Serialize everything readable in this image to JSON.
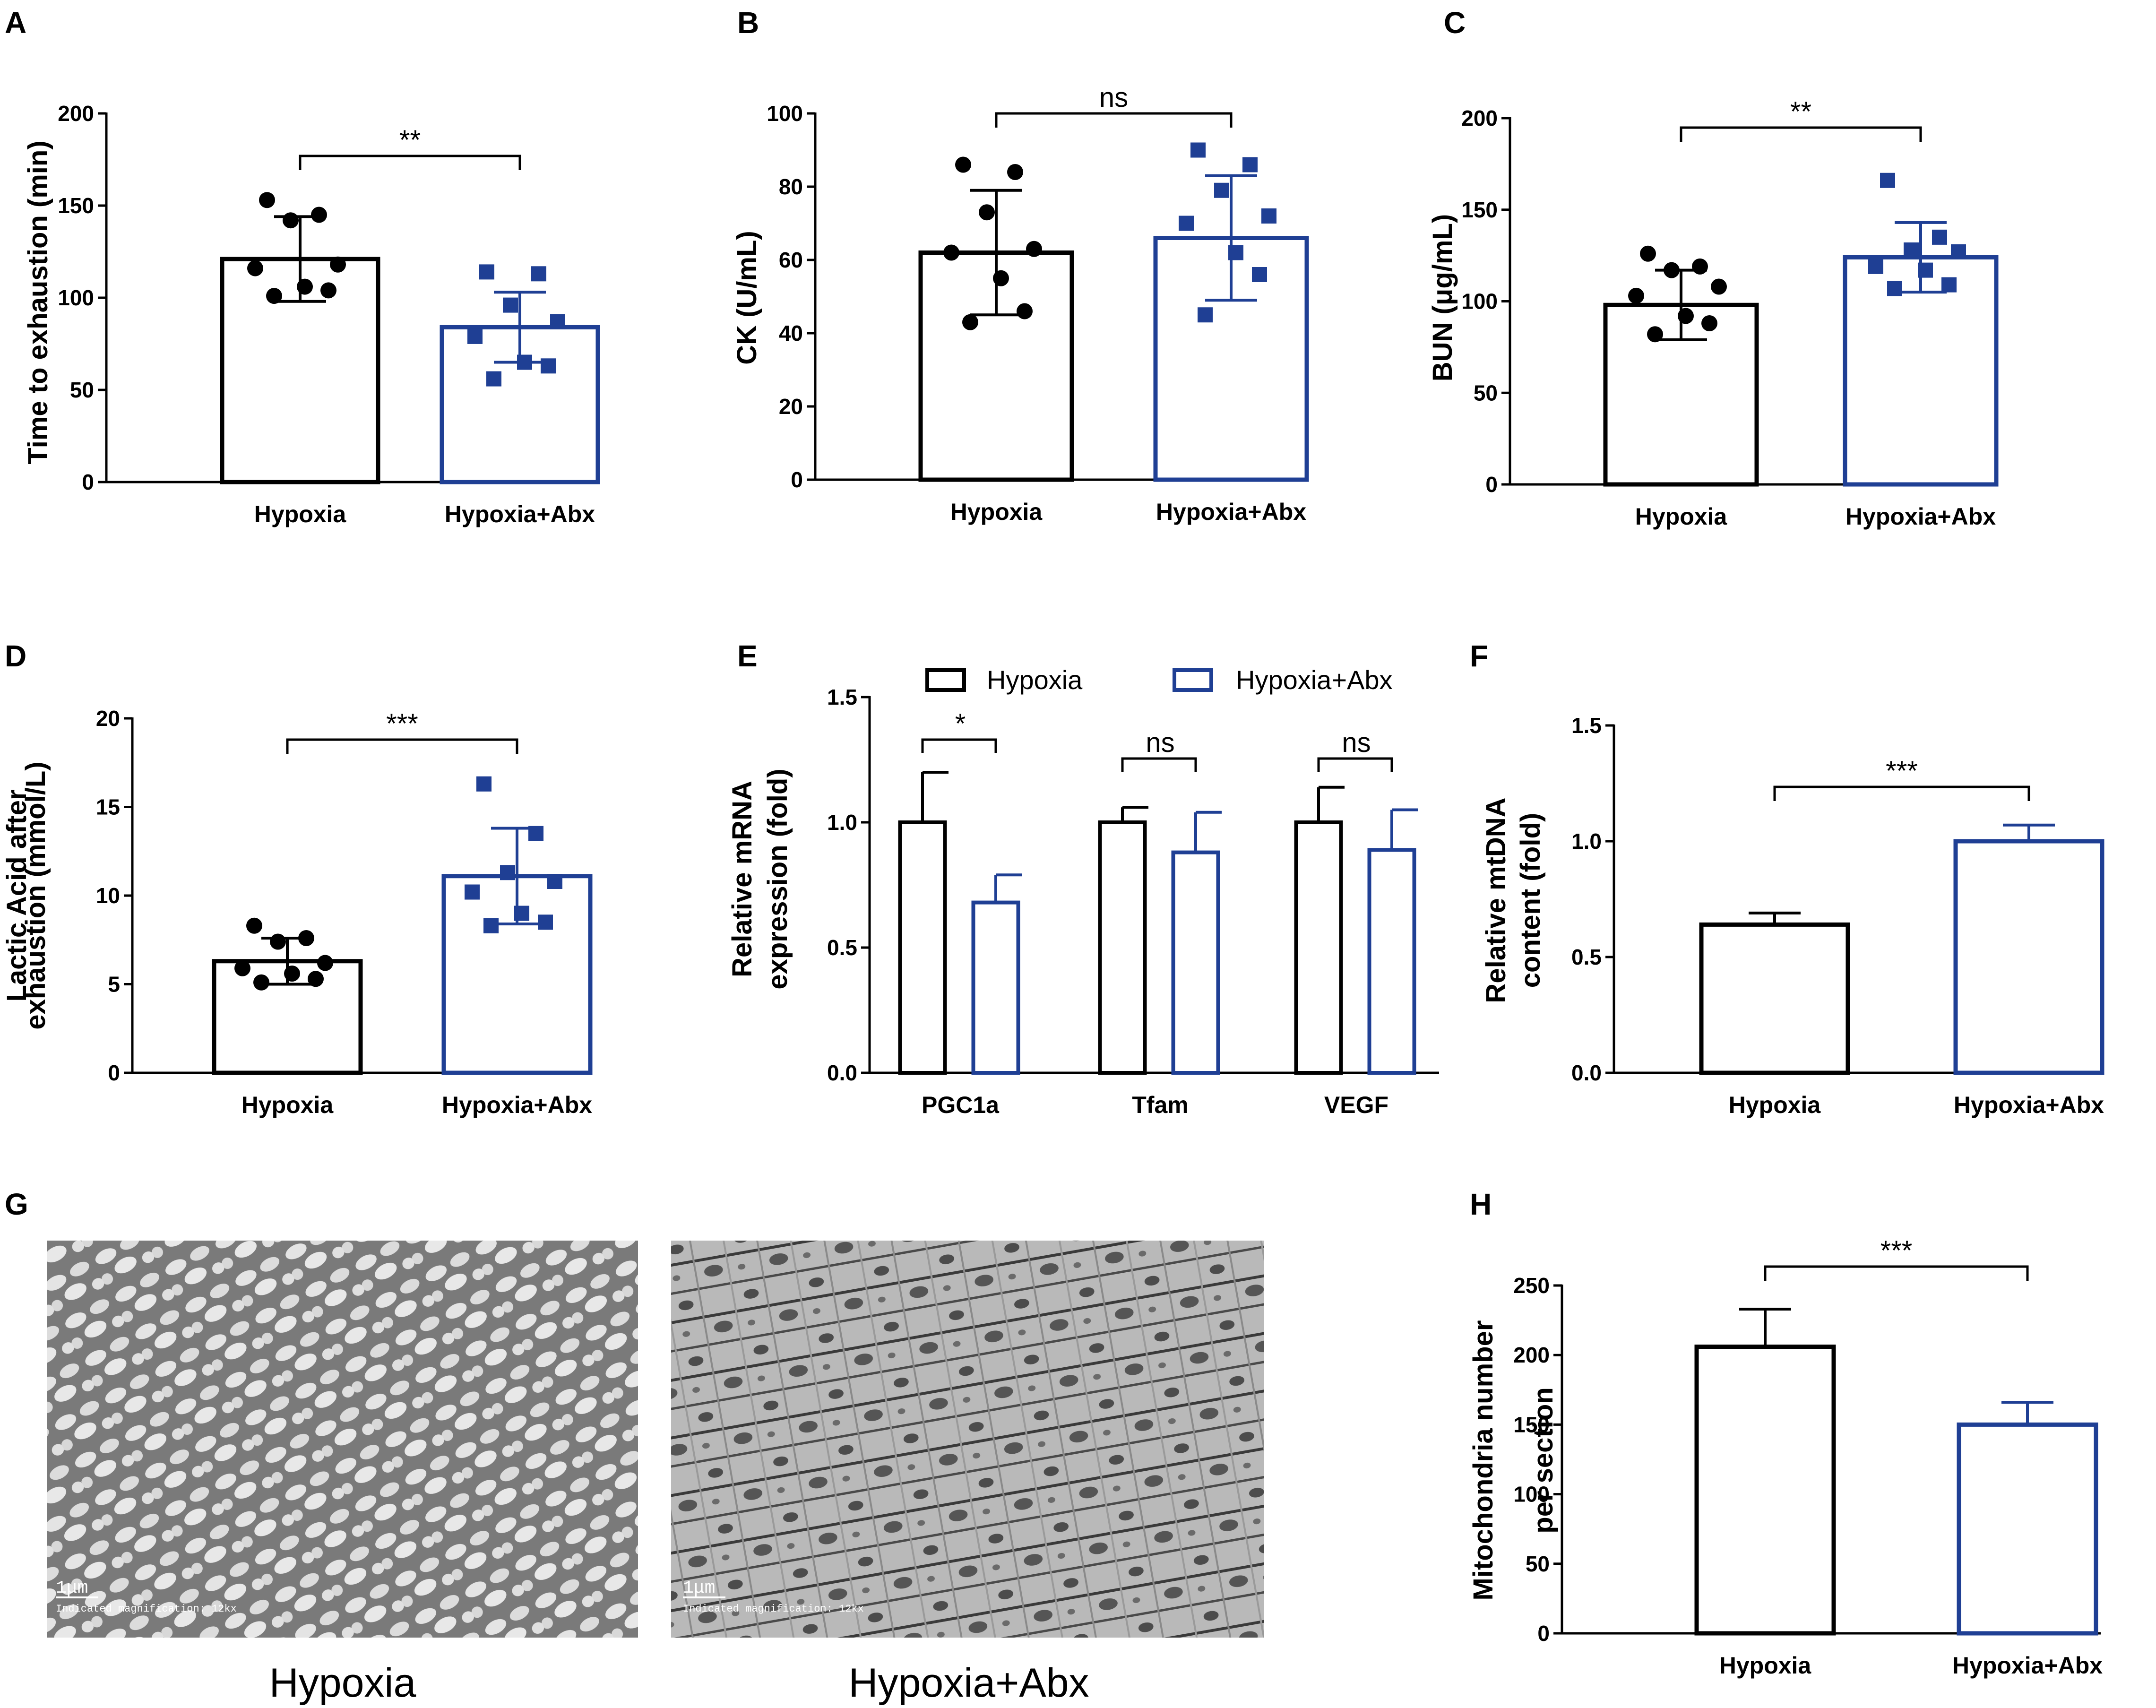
{
  "colors": {
    "hypoxia": "#000000",
    "abx": "#1f3f94",
    "axis": "#000000"
  },
  "chart_data": [
    {
      "panel": "A",
      "type": "bar",
      "ylabel": "Time to exhaustion (min)",
      "ylim": [
        0,
        200
      ],
      "yticks": [
        0,
        50,
        100,
        150,
        200
      ],
      "categories": [
        "Hypoxia",
        "Hypoxia+Abx"
      ],
      "values": [
        121,
        84
      ],
      "errors": [
        23,
        19
      ],
      "points": [
        [
          153,
          145,
          142,
          118,
          116,
          106,
          104,
          101
        ],
        [
          114,
          113,
          96,
          87,
          79,
          65,
          63,
          56
        ]
      ],
      "significance": "**"
    },
    {
      "panel": "B",
      "type": "bar",
      "ylabel": "CK (U/mL)",
      "ylim": [
        0,
        100
      ],
      "yticks": [
        0,
        20,
        40,
        60,
        80,
        100
      ],
      "categories": [
        "Hypoxia",
        "Hypoxia+Abx"
      ],
      "values": [
        62,
        66
      ],
      "errors": [
        17,
        17
      ],
      "points": [
        [
          86,
          84,
          73,
          63,
          62,
          55,
          46,
          43
        ],
        [
          90,
          86,
          79,
          72,
          70,
          62,
          56,
          45
        ]
      ],
      "significance": "ns"
    },
    {
      "panel": "C",
      "type": "bar",
      "ylabel": "BUN (μg/mL)",
      "ylim": [
        0,
        200
      ],
      "yticks": [
        0,
        50,
        100,
        150,
        200
      ],
      "categories": [
        "Hypoxia",
        "Hypoxia+Abx"
      ],
      "values": [
        98,
        124
      ],
      "errors": [
        19,
        19
      ],
      "points": [
        [
          126,
          119,
          117,
          108,
          103,
          92,
          88,
          82
        ],
        [
          166,
          135,
          128,
          127,
          119,
          117,
          109,
          107
        ]
      ],
      "significance": "**"
    },
    {
      "panel": "D",
      "type": "bar",
      "ylabel": "Lactic Acid after exhaustion (mmol/L)",
      "ylabel_lines": [
        "Lactic Acid after",
        "exhaustion (mmol/L)"
      ],
      "ylim": [
        0,
        20
      ],
      "yticks": [
        0,
        5,
        10,
        15,
        20
      ],
      "categories": [
        "Hypoxia",
        "Hypoxia+Abx"
      ],
      "values": [
        6.3,
        11.1
      ],
      "errors": [
        1.3,
        2.7
      ],
      "points": [
        [
          8.3,
          7.6,
          7.4,
          6.2,
          5.9,
          5.6,
          5.3,
          5.1
        ],
        [
          16.3,
          13.5,
          11.3,
          10.8,
          10.2,
          9.0,
          8.5,
          8.3
        ]
      ],
      "significance": "***"
    },
    {
      "panel": "E",
      "type": "bar",
      "ylabel": "Relative mRNA expression (fold)",
      "ylabel_lines": [
        "Relative mRNA",
        "expression (fold)"
      ],
      "ylim": [
        0,
        1.5
      ],
      "yticks": [
        "0.0",
        "0.5",
        "1.0",
        "1.5"
      ],
      "categories": [
        "PGC1a",
        "Tfam",
        "VEGF"
      ],
      "legend": [
        "Hypoxia",
        "Hypoxia+Abx"
      ],
      "series": [
        {
          "name": "Hypoxia",
          "values": [
            1.0,
            1.0,
            1.0
          ],
          "errors": [
            0.2,
            0.06,
            0.14
          ]
        },
        {
          "name": "Hypoxia+Abx",
          "values": [
            0.68,
            0.88,
            0.89
          ],
          "errors": [
            0.11,
            0.16,
            0.16
          ]
        }
      ],
      "significance": [
        "*",
        "ns",
        "ns"
      ]
    },
    {
      "panel": "F",
      "type": "bar",
      "ylabel": "Relative mtDNA content (fold)",
      "ylabel_lines": [
        "Relative mtDNA",
        "content (fold)"
      ],
      "ylim": [
        0,
        1.5
      ],
      "yticks": [
        "0.0",
        "0.5",
        "1.0",
        "1.5"
      ],
      "categories": [
        "Hypoxia",
        "Hypoxia+Abx"
      ],
      "values": [
        0.64,
        1.0
      ],
      "errors": [
        0.05,
        0.07
      ],
      "significance": "***"
    },
    {
      "panel": "H",
      "type": "bar",
      "ylabel": "Mitochondria number per section",
      "ylabel_lines": [
        "Mitochondria number",
        "per section"
      ],
      "ylim": [
        0,
        250
      ],
      "yticks": [
        0,
        50,
        100,
        150,
        200,
        250
      ],
      "categories": [
        "Hypoxia",
        "Hypoxia+Abx"
      ],
      "values": [
        206,
        150
      ],
      "errors": [
        27,
        16
      ],
      "significance": "***"
    }
  ],
  "panel_g": {
    "label": "G",
    "images": [
      {
        "caption": "Hypoxia",
        "scale_bar": "1μm",
        "magnification": "Indicated magnification: 12kx"
      },
      {
        "caption": "Hypoxia+Abx",
        "scale_bar": "1μm",
        "magnification": "Indicated magnification: 12kx"
      }
    ]
  }
}
